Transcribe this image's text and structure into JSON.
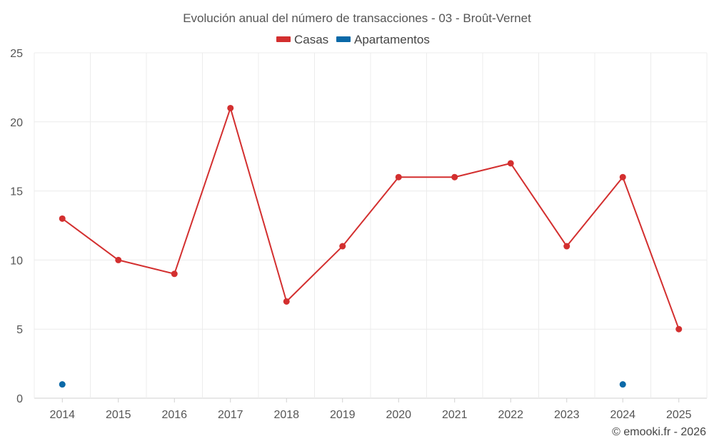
{
  "chart_data": {
    "type": "line",
    "title": "Evolución anual del número de transacciones - 03 - Broût-Vernet",
    "xlabel": "",
    "ylabel": "",
    "categories": [
      "2014",
      "2015",
      "2016",
      "2017",
      "2018",
      "2019",
      "2020",
      "2021",
      "2022",
      "2023",
      "2024",
      "2025"
    ],
    "ylim": [
      0,
      25
    ],
    "yticks": [
      "0",
      "5",
      "10",
      "15",
      "20",
      "25"
    ],
    "grid": true,
    "legend_position": "top-center",
    "series": [
      {
        "name": "Casas",
        "color": "#d32f2f",
        "values": [
          13,
          10,
          9,
          21,
          7,
          11,
          16,
          16,
          17,
          11,
          16,
          5
        ]
      },
      {
        "name": "Apartamentos",
        "color": "#0a69a8",
        "values": [
          1,
          null,
          null,
          null,
          null,
          null,
          null,
          null,
          null,
          null,
          1,
          null
        ]
      }
    ]
  },
  "credit": "© emooki.fr - 2026"
}
